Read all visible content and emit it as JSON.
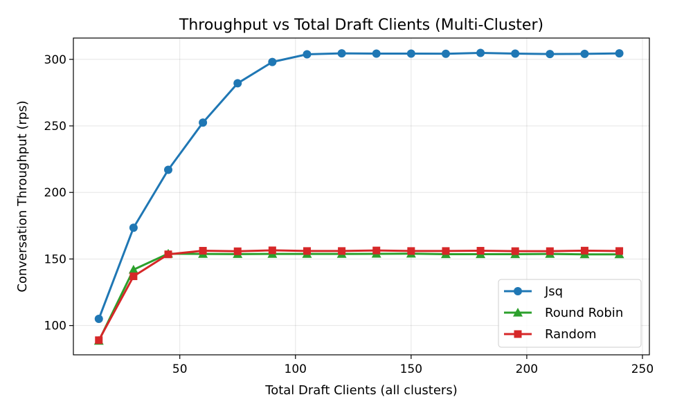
{
  "chart_data": {
    "type": "line",
    "title": "Throughput vs Total Draft Clients (Multi-Cluster)",
    "xlabel": "Total Draft Clients (all clusters)",
    "ylabel": "Conversation Throughput (rps)",
    "xlim": [
      4,
      253
    ],
    "ylim": [
      78,
      316
    ],
    "xticks": [
      50,
      100,
      150,
      200,
      250
    ],
    "yticks": [
      100,
      150,
      200,
      250,
      300
    ],
    "grid": true,
    "legend_position": "lower-right",
    "x": [
      15,
      30,
      45,
      60,
      75,
      90,
      105,
      120,
      135,
      150,
      165,
      180,
      195,
      210,
      225,
      240
    ],
    "series": [
      {
        "name": "Jsq",
        "color": "#1f77b4",
        "marker": "circle",
        "values": [
          105,
          173.5,
          217,
          252.5,
          282,
          298,
          303.8,
          304.5,
          304.3,
          304.3,
          304.2,
          304.8,
          304.3,
          304.0,
          304.1,
          304.5
        ]
      },
      {
        "name": "Round Robin",
        "color": "#2ca02c",
        "marker": "triangle",
        "values": [
          88.5,
          142,
          154,
          153.8,
          153.7,
          153.8,
          153.8,
          153.8,
          153.9,
          154.0,
          153.6,
          153.6,
          153.6,
          153.8,
          153.5,
          153.5
        ]
      },
      {
        "name": "Random",
        "color": "#d62728",
        "marker": "square",
        "values": [
          89,
          137,
          153.5,
          156.2,
          155.8,
          156.5,
          156.0,
          156.0,
          156.4,
          156.0,
          156.0,
          156.2,
          155.9,
          155.9,
          156.3,
          156.0
        ]
      }
    ]
  }
}
